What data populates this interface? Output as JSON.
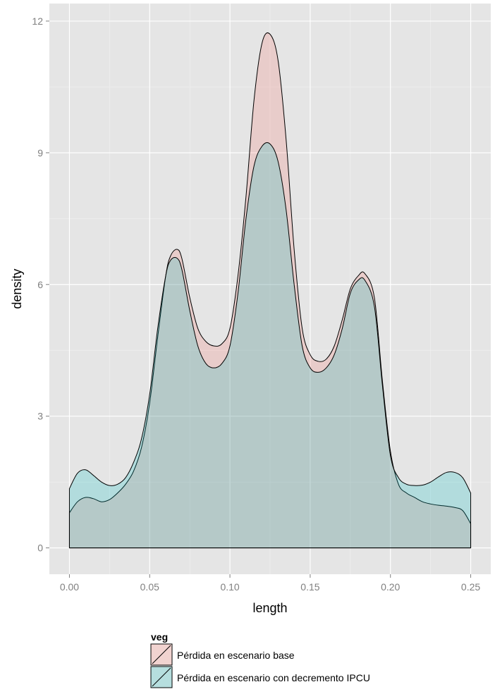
{
  "chart_data": {
    "type": "area",
    "xlabel": "length",
    "ylabel": "density",
    "xlim": [
      -0.0125,
      0.2625
    ],
    "ylim": [
      -0.6,
      12.4
    ],
    "x_ticks": [
      0.0,
      0.05,
      0.1,
      0.15,
      0.2,
      0.25
    ],
    "x_tick_labels": [
      "0.00",
      "0.05",
      "0.10",
      "0.15",
      "0.20",
      "0.25"
    ],
    "y_ticks": [
      0,
      3,
      6,
      9,
      12
    ],
    "y_tick_labels": [
      "0",
      "3",
      "6",
      "9",
      "12"
    ],
    "grid": true,
    "panel_background": "#e5e5e5",
    "legend": {
      "title": "veg",
      "position": "bottom",
      "items": [
        "Pérdida en escenario base",
        "Pérdida en escenario con decremento IPCU"
      ]
    },
    "series": [
      {
        "name": "Pérdida en escenario base",
        "color": "#f8766d",
        "fill": "#f1d3d0",
        "x": [
          0.0,
          0.005,
          0.01,
          0.015,
          0.02,
          0.025,
          0.03,
          0.035,
          0.04,
          0.045,
          0.05,
          0.055,
          0.06,
          0.063,
          0.067,
          0.07,
          0.075,
          0.08,
          0.085,
          0.09,
          0.095,
          0.1,
          0.105,
          0.11,
          0.115,
          0.12,
          0.125,
          0.13,
          0.135,
          0.14,
          0.145,
          0.15,
          0.155,
          0.16,
          0.165,
          0.17,
          0.175,
          0.18,
          0.184,
          0.19,
          0.195,
          0.2,
          0.205,
          0.21,
          0.215,
          0.22,
          0.225,
          0.23,
          0.235,
          0.24,
          0.245,
          0.25
        ],
        "y": [
          0.8,
          1.05,
          1.15,
          1.12,
          1.05,
          1.1,
          1.25,
          1.45,
          1.75,
          2.3,
          3.3,
          4.8,
          6.2,
          6.65,
          6.8,
          6.6,
          5.7,
          5.0,
          4.7,
          4.6,
          4.65,
          5.0,
          6.2,
          8.0,
          10.2,
          11.5,
          11.7,
          11.1,
          9.3,
          6.8,
          5.0,
          4.4,
          4.25,
          4.3,
          4.6,
          5.2,
          5.9,
          6.2,
          6.25,
          5.7,
          3.8,
          2.2,
          1.45,
          1.25,
          1.15,
          1.05,
          1.0,
          0.97,
          0.95,
          0.92,
          0.85,
          0.55
        ]
      },
      {
        "name": "Pérdida en escenario con decremento IPCU",
        "color": "#00bfc4",
        "fill": "#b6dede",
        "x": [
          0.0,
          0.005,
          0.01,
          0.015,
          0.02,
          0.025,
          0.03,
          0.035,
          0.04,
          0.045,
          0.05,
          0.055,
          0.06,
          0.063,
          0.067,
          0.07,
          0.075,
          0.08,
          0.085,
          0.09,
          0.095,
          0.1,
          0.105,
          0.11,
          0.115,
          0.12,
          0.125,
          0.13,
          0.135,
          0.14,
          0.145,
          0.15,
          0.155,
          0.16,
          0.165,
          0.17,
          0.175,
          0.18,
          0.184,
          0.19,
          0.195,
          0.2,
          0.205,
          0.21,
          0.215,
          0.22,
          0.225,
          0.23,
          0.235,
          0.24,
          0.245,
          0.25
        ],
        "y": [
          1.35,
          1.7,
          1.78,
          1.65,
          1.5,
          1.42,
          1.45,
          1.6,
          1.95,
          2.5,
          3.5,
          5.0,
          6.2,
          6.55,
          6.6,
          6.35,
          5.4,
          4.6,
          4.2,
          4.1,
          4.2,
          4.6,
          5.8,
          7.5,
          8.7,
          9.15,
          9.2,
          8.8,
          7.7,
          6.0,
          4.6,
          4.1,
          4.0,
          4.1,
          4.4,
          5.0,
          5.8,
          6.1,
          6.1,
          5.5,
          3.7,
          2.1,
          1.6,
          1.45,
          1.42,
          1.43,
          1.5,
          1.62,
          1.72,
          1.72,
          1.6,
          1.25
        ]
      }
    ]
  }
}
